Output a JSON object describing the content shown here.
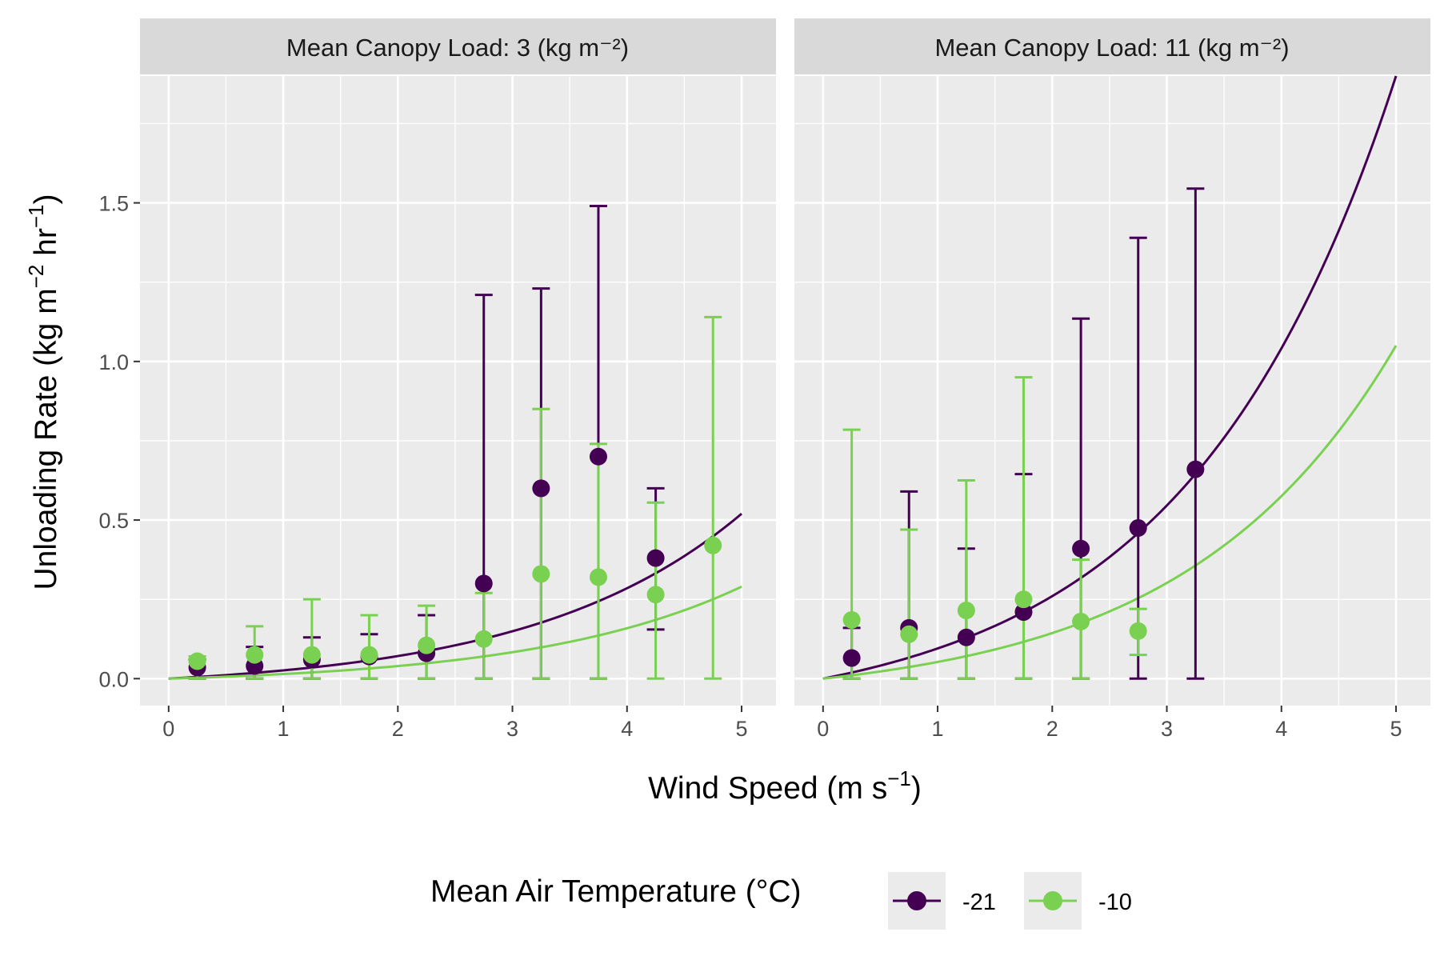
{
  "chart_data": {
    "type": "scatter",
    "xlabel": {
      "main": "Wind Speed (m s",
      "sup": "−1",
      "close": ")"
    },
    "ylabel": {
      "part1": "Unloading Rate (kg m",
      "sup1": "−2",
      "part2": " hr",
      "sup2": "−1",
      "close": ")"
    },
    "xlim": [
      -0.25,
      5.3
    ],
    "ylim": [
      -0.085,
      1.9
    ],
    "x_ticks": [
      0,
      1,
      2,
      3,
      4,
      5
    ],
    "x_tick_labels": [
      "0",
      "1",
      "2",
      "3",
      "4",
      "5"
    ],
    "y_ticks": [
      0.0,
      0.5,
      1.0,
      1.5
    ],
    "y_tick_labels": [
      "0.0",
      "0.5",
      "1.0",
      "1.5"
    ],
    "grid": true,
    "legend": {
      "title": "Mean Air Temperature (°C)",
      "position": "bottom",
      "entries": [
        "-21",
        "-10"
      ]
    },
    "series_colors": {
      "-21": "#440154",
      "-10": "#7AD151"
    },
    "panels": [
      {
        "strip": "Mean Canopy Load: 3 (kg m⁻²)",
        "series": [
          {
            "name": "-21",
            "points": [
              {
                "x": 0.25,
                "y": 0.035,
                "lo": 0.0,
                "hi": 0.06
              },
              {
                "x": 0.75,
                "y": 0.04,
                "lo": 0.0,
                "hi": 0.1
              },
              {
                "x": 1.25,
                "y": 0.06,
                "lo": 0.0,
                "hi": 0.13
              },
              {
                "x": 1.75,
                "y": 0.07,
                "lo": 0.0,
                "hi": 0.14
              },
              {
                "x": 2.25,
                "y": 0.08,
                "lo": 0.0,
                "hi": 0.2
              },
              {
                "x": 2.75,
                "y": 0.3,
                "lo": 0.0,
                "hi": 1.21
              },
              {
                "x": 3.25,
                "y": 0.6,
                "lo": 0.0,
                "hi": 1.23
              },
              {
                "x": 3.75,
                "y": 0.7,
                "lo": 0.0,
                "hi": 1.49
              },
              {
                "x": 4.25,
                "y": 0.38,
                "lo": 0.155,
                "hi": 0.6
              }
            ],
            "curve": {
              "a": 0.0,
              "b": 0.52,
              "c": 0.0
            }
          },
          {
            "name": "-10",
            "points": [
              {
                "x": 0.25,
                "y": 0.055,
                "lo": 0.0,
                "hi": 0.07
              },
              {
                "x": 0.75,
                "y": 0.075,
                "lo": 0.0,
                "hi": 0.165
              },
              {
                "x": 1.25,
                "y": 0.075,
                "lo": 0.0,
                "hi": 0.25
              },
              {
                "x": 1.75,
                "y": 0.075,
                "lo": 0.0,
                "hi": 0.2
              },
              {
                "x": 2.25,
                "y": 0.105,
                "lo": 0.0,
                "hi": 0.23
              },
              {
                "x": 2.75,
                "y": 0.125,
                "lo": 0.0,
                "hi": 0.27
              },
              {
                "x": 3.25,
                "y": 0.33,
                "lo": 0.0,
                "hi": 0.85
              },
              {
                "x": 3.75,
                "y": 0.32,
                "lo": 0.0,
                "hi": 0.74
              },
              {
                "x": 4.25,
                "y": 0.265,
                "lo": 0.0,
                "hi": 0.555
              },
              {
                "x": 4.75,
                "y": 0.42,
                "lo": 0.0,
                "hi": 1.14
              }
            ],
            "curve": {
              "a": 0.0,
              "b": 0.29,
              "c": 0.0
            }
          }
        ]
      },
      {
        "strip": "Mean Canopy Load: 11 (kg m⁻²)",
        "series": [
          {
            "name": "-21",
            "points": [
              {
                "x": 0.25,
                "y": 0.065,
                "lo": 0.0,
                "hi": 0.16
              },
              {
                "x": 0.75,
                "y": 0.16,
                "lo": 0.0,
                "hi": 0.59
              },
              {
                "x": 1.25,
                "y": 0.13,
                "lo": 0.0,
                "hi": 0.41
              },
              {
                "x": 1.75,
                "y": 0.21,
                "lo": 0.0,
                "hi": 0.645
              },
              {
                "x": 2.25,
                "y": 0.41,
                "lo": 0.0,
                "hi": 1.135
              },
              {
                "x": 2.75,
                "y": 0.475,
                "lo": 0.0,
                "hi": 1.39
              },
              {
                "x": 3.25,
                "y": 0.66,
                "lo": 0.0,
                "hi": 1.545
              }
            ],
            "curve": {
              "a": 0.0,
              "b": 1.9,
              "c": 0.0
            }
          },
          {
            "name": "-10",
            "points": [
              {
                "x": 0.25,
                "y": 0.185,
                "lo": 0.0,
                "hi": 0.785
              },
              {
                "x": 0.75,
                "y": 0.14,
                "lo": 0.0,
                "hi": 0.47
              },
              {
                "x": 1.25,
                "y": 0.215,
                "lo": 0.0,
                "hi": 0.625
              },
              {
                "x": 1.75,
                "y": 0.25,
                "lo": 0.0,
                "hi": 0.95
              },
              {
                "x": 2.25,
                "y": 0.18,
                "lo": 0.0,
                "hi": 0.375
              },
              {
                "x": 2.75,
                "y": 0.15,
                "lo": 0.075,
                "hi": 0.22
              }
            ],
            "curve": {
              "a": 0.0,
              "b": 1.05,
              "c": 0.0
            }
          }
        ]
      }
    ]
  }
}
